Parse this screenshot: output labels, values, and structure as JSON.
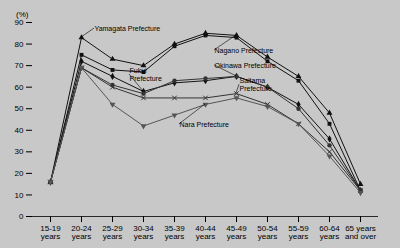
{
  "chart_data": {
    "type": "line",
    "categories": [
      "15-19\nyears",
      "20-24\nyears",
      "25-29\nyears",
      "30-34\nyears",
      "35-39\nyears",
      "40-44\nyears",
      "45-49\nyears",
      "50-54\nyears",
      "55-59\nyears",
      "60-64\nyears",
      "65 years\nand over"
    ],
    "series": [
      {
        "name": "Yamagata Prefecture",
        "values": [
          16,
          83,
          73,
          70,
          80,
          85,
          84,
          74,
          65,
          48,
          15
        ],
        "marker": "triangle",
        "color": "#111111"
      },
      {
        "name": "Nagano Prefecture",
        "values": [
          16,
          75,
          68,
          67,
          79,
          84,
          83,
          72,
          63,
          43,
          12
        ],
        "marker": "square",
        "color": "#111111"
      },
      {
        "name": "Fukui Prefecture",
        "values": [
          16,
          72,
          65,
          58,
          62,
          63,
          65,
          60,
          52,
          36,
          12
        ],
        "marker": "diamond",
        "color": "#111111"
      },
      {
        "name": "Okinawa Prefecture",
        "values": [
          16,
          69,
          61,
          57,
          63,
          64,
          65,
          60,
          50,
          33,
          12
        ],
        "marker": "circle",
        "color": "#333333"
      },
      {
        "name": "Saitama Prefecture",
        "values": [
          16,
          69,
          60,
          55,
          55,
          55,
          57,
          52,
          43,
          30,
          12
        ],
        "marker": "x",
        "color": "#333333"
      },
      {
        "name": "Nara Prefecture",
        "values": [
          16,
          69,
          52,
          42,
          47,
          52,
          55,
          51,
          43,
          28,
          11
        ],
        "marker": "triangle-down",
        "color": "#555555"
      }
    ],
    "ylim": [
      0,
      90
    ],
    "yticks": [
      0,
      10,
      20,
      30,
      40,
      50,
      60,
      70,
      80,
      90
    ],
    "ylabel": "(%)",
    "grid": false,
    "background": "#c8c8c8",
    "annotations": [
      {
        "text": "Yamagata Prefecture",
        "x": "20-24\nyears",
        "y": 83
      },
      {
        "text": "Fukui\nPrefecture",
        "x": "30-34\nyears",
        "y": 58
      },
      {
        "text": "Nagano Prefecture",
        "x": "45-49\nyears",
        "y": 84
      },
      {
        "text": "Okinawa Prefecture",
        "x": "45-49\nyears",
        "y": 65
      },
      {
        "text": "Saitama\nPrefecture",
        "x": "45-49\nyears",
        "y": 57
      },
      {
        "text": "Nara Prefecture",
        "x": "40-44\nyears",
        "y": 52
      }
    ]
  }
}
